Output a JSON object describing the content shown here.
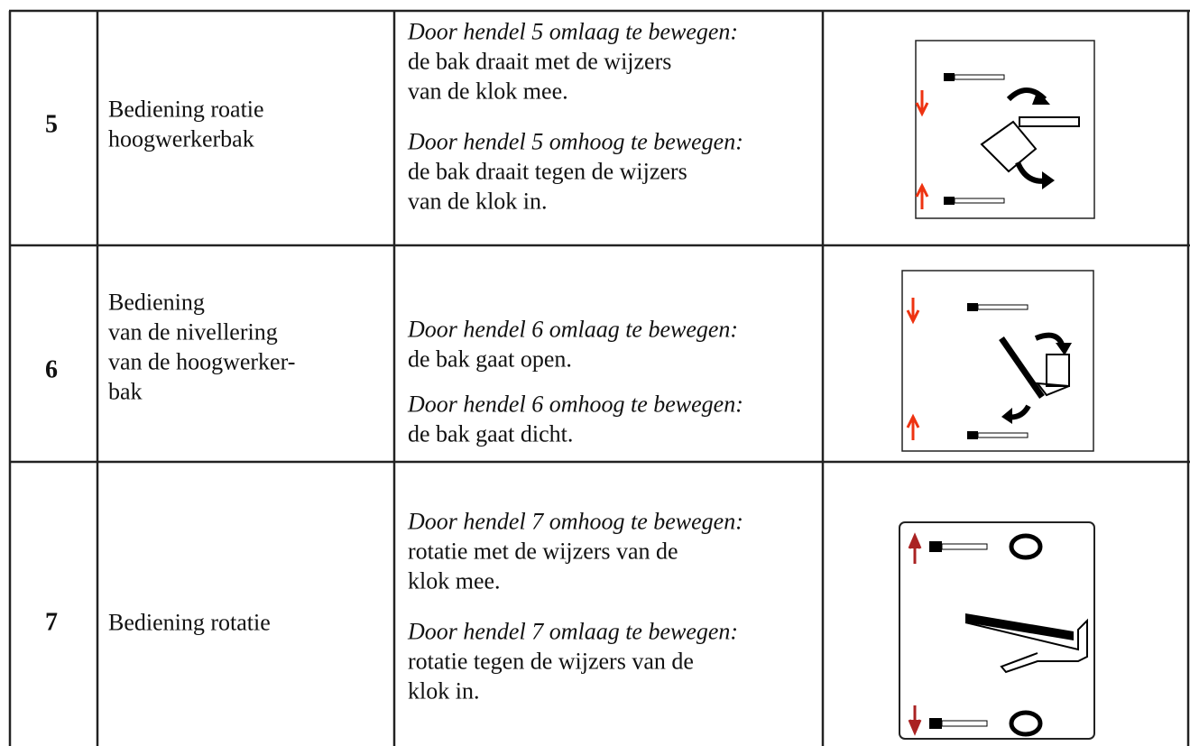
{
  "table": {
    "rows": [
      {
        "number": "5",
        "name": [
          "Bediening roatie",
          "hoogwerkerbak"
        ],
        "description": [
          {
            "heading": "Door hendel 5 omlaag te bewegen:",
            "lines": [
              "de bak draait met de wijzers",
              "van de klok mee."
            ]
          },
          {
            "heading": "Door hendel 5 omhoog te bewegen:",
            "lines": [
              "de bak draait tegen de wijzers",
              "van de klok in."
            ]
          }
        ]
      },
      {
        "number": "6",
        "name": [
          "Bediening",
          "van de nivellering",
          "van de hoogwerker-",
          "bak"
        ],
        "description": [
          {
            "heading": "Door hendel 6 omlaag te bewegen:",
            "lines": [
              "de bak gaat open."
            ]
          },
          {
            "heading": "Door hendel 6 omhoog te bewegen:",
            "lines": [
              "de bak gaat dicht."
            ]
          }
        ]
      },
      {
        "number": "7",
        "name": [
          "Bediening rotatie"
        ],
        "description": [
          {
            "heading": "Door hendel 7 omhoog te bewegen:",
            "lines": [
              "rotatie met de wijzers van de",
              "klok mee."
            ]
          },
          {
            "heading": "Door hendel 7 omlaag te bewegen:",
            "lines": [
              "rotatie tegen de wijzers van de",
              "klok in."
            ]
          }
        ]
      }
    ]
  }
}
